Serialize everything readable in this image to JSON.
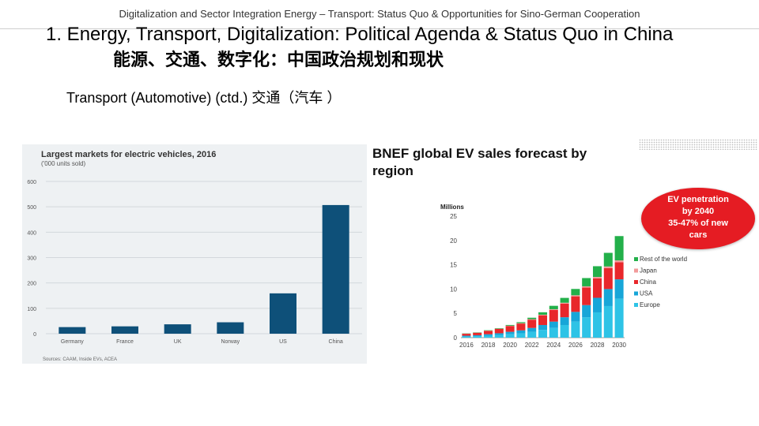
{
  "header": {
    "text": "Digitalization and Sector Integration Energy – Transport: Status Quo & Opportunities for Sino-German Cooperation"
  },
  "title": {
    "en": "1.   Energy, Transport, Digitalization: Political Agenda & Status Quo in China",
    "zh": "能源、交通、数字化：中国政治规划和现状"
  },
  "subtitle": "Transport (Automotive) (ctd.) 交通（汽车 ）",
  "badge": {
    "line1": "EV penetration",
    "line2": "by 2040",
    "line3": "35-47% of new",
    "line4": "cars"
  },
  "colors": {
    "bar_blue": "#0e5079",
    "rest": "#23b04a",
    "japan": "#f29b9b",
    "china": "#e8272b",
    "usa": "#17a6d8",
    "europe": "#2ec3e6"
  },
  "chart_data": [
    {
      "type": "bar",
      "title": "Largest markets for electric vehicles, 2016",
      "subtitle": "('000 units sold)",
      "categories": [
        "Germany",
        "France",
        "UK",
        "Norway",
        "US",
        "China"
      ],
      "values": [
        26,
        29,
        37,
        45,
        159,
        507
      ],
      "ylim": [
        0,
        600
      ],
      "yticks": [
        0,
        100,
        200,
        300,
        400,
        500,
        600
      ],
      "source": "Sources: CAAM, Inside EVs, ACEA",
      "xlabel": "",
      "ylabel": ""
    },
    {
      "type": "bar",
      "stacked": true,
      "title": "BNEF global EV sales forecast by region",
      "ylabel": "Millions",
      "ylim": [
        0,
        25
      ],
      "yticks": [
        0,
        5,
        10,
        15,
        20,
        25
      ],
      "x": [
        2016,
        2017,
        2018,
        2019,
        2020,
        2021,
        2022,
        2023,
        2024,
        2025,
        2026,
        2027,
        2028,
        2029,
        2030
      ],
      "xtick_labels": [
        "2016",
        "2018",
        "2020",
        "2022",
        "2024",
        "2026",
        "2028",
        "2030"
      ],
      "series": [
        {
          "name": "Europe",
          "values": [
            0.2,
            0.3,
            0.4,
            0.5,
            0.7,
            0.9,
            1.2,
            1.6,
            2.0,
            2.6,
            3.3,
            4.2,
            5.2,
            6.5,
            8.0
          ]
        },
        {
          "name": "USA",
          "values": [
            0.2,
            0.2,
            0.3,
            0.4,
            0.5,
            0.6,
            0.8,
            1.0,
            1.3,
            1.6,
            2.0,
            2.5,
            3.0,
            3.5,
            4.0
          ]
        },
        {
          "name": "China",
          "values": [
            0.4,
            0.5,
            0.7,
            0.9,
            1.2,
            1.4,
            1.7,
            2.0,
            2.4,
            2.8,
            3.2,
            3.6,
            4.0,
            4.3,
            3.5
          ]
        },
        {
          "name": "Japan",
          "values": [
            0.02,
            0.03,
            0.04,
            0.05,
            0.06,
            0.08,
            0.1,
            0.12,
            0.15,
            0.18,
            0.22,
            0.26,
            0.3,
            0.35,
            0.4
          ]
        },
        {
          "name": "Rest of the world",
          "values": [
            0.05,
            0.06,
            0.08,
            0.1,
            0.15,
            0.2,
            0.3,
            0.5,
            0.7,
            1.0,
            1.3,
            1.7,
            2.2,
            2.8,
            5.0
          ]
        }
      ],
      "legend": [
        "Rest of the world",
        "Japan",
        "China",
        "USA",
        "Europe"
      ],
      "legend_position": "right"
    }
  ]
}
